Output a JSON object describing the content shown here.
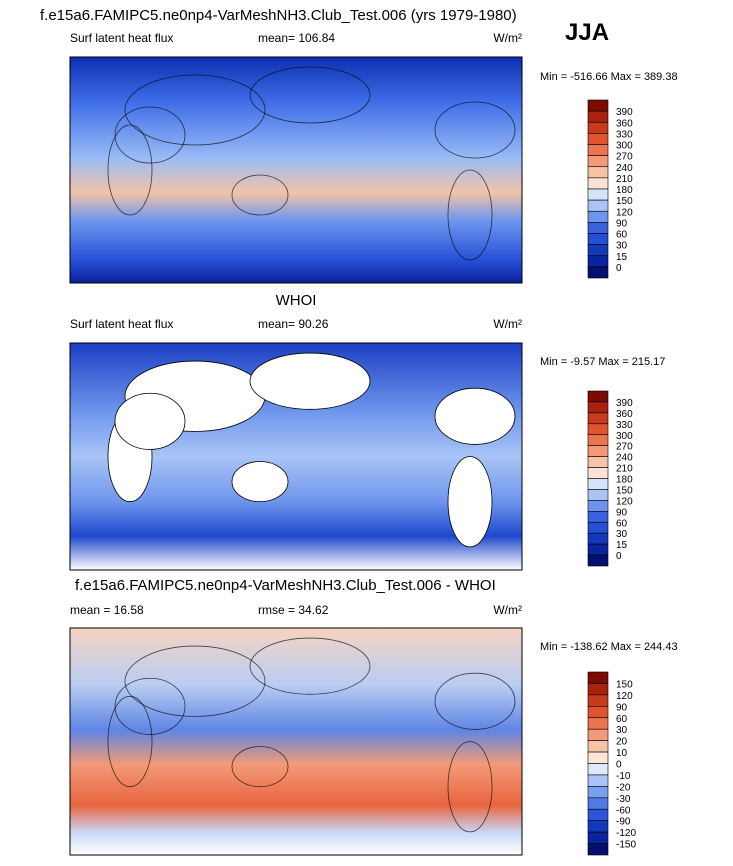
{
  "title": "f.e15a6.FAMIPC5.ne0np4-VarMeshNH3.Club_Test.006 (yrs 1979-1980)",
  "season": "JJA",
  "panels": [
    {
      "heading": null,
      "field": "Surf latent heat flux",
      "stat": "mean= 106.84",
      "units": "W/m²",
      "range": "Min = -516.66 Max = 389.38",
      "colorbar": [
        "390",
        "360",
        "330",
        "300",
        "270",
        "240",
        "210",
        "180",
        "150",
        "120",
        "90",
        "60",
        "30",
        "15",
        "0"
      ]
    },
    {
      "heading": "WHOI",
      "field": "Surf latent heat flux",
      "stat": "mean=  90.26",
      "units": "W/m²",
      "range": "Min =  -9.57 Max = 215.17",
      "colorbar": [
        "390",
        "360",
        "330",
        "300",
        "270",
        "240",
        "210",
        "180",
        "150",
        "120",
        "90",
        "60",
        "30",
        "15",
        "0"
      ]
    },
    {
      "heading": "f.e15a6.FAMIPC5.ne0np4-VarMeshNH3.Club_Test.006 - WHOI",
      "field": "mean =  16.58",
      "stat": "rmse =  34.62",
      "units": "W/m²",
      "range": "Min = -138.62 Max = 244.43",
      "colorbar": [
        "150",
        "120",
        "90",
        "60",
        "30",
        "20",
        "10",
        "0",
        "-10",
        "-20",
        "-30",
        "-60",
        "-90",
        "-120",
        "-150"
      ]
    }
  ]
}
